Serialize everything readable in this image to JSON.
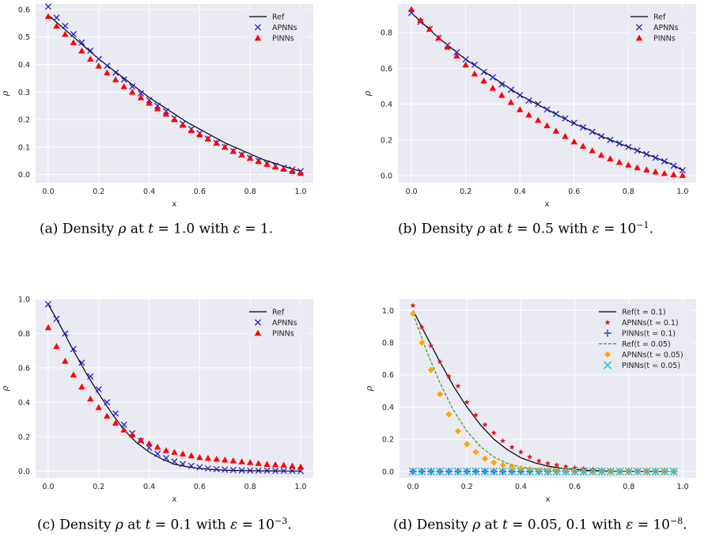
{
  "chart_data": [
    {
      "type": "scatter",
      "xlabel": "x",
      "ylabel": "ρ",
      "xlim": [
        -0.05,
        1.05
      ],
      "ylim": [
        -0.03,
        0.62
      ],
      "xticks": [
        "0.0",
        "0.2",
        "0.4",
        "0.6",
        "0.8",
        "1.0"
      ],
      "yticks": [
        "0.0",
        "0.1",
        "0.2",
        "0.3",
        "0.4",
        "0.5",
        "0.6"
      ],
      "legend_position": "top-right",
      "series": [
        {
          "name": "Ref",
          "style": "line",
          "color": "#000000",
          "x": [
            0,
            0.05,
            0.1,
            0.15,
            0.2,
            0.25,
            0.3,
            0.35,
            0.4,
            0.45,
            0.5,
            0.55,
            0.6,
            0.65,
            0.7,
            0.75,
            0.8,
            0.85,
            0.9,
            0.95,
            1.0
          ],
          "y": [
            0.58,
            0.54,
            0.5,
            0.46,
            0.42,
            0.385,
            0.35,
            0.315,
            0.28,
            0.25,
            0.22,
            0.19,
            0.165,
            0.14,
            0.115,
            0.095,
            0.075,
            0.055,
            0.04,
            0.025,
            0.012
          ]
        },
        {
          "name": "APNNs",
          "style": "x",
          "color": "#1f1fcc",
          "x": [
            0,
            0.033,
            0.067,
            0.1,
            0.133,
            0.167,
            0.2,
            0.233,
            0.267,
            0.3,
            0.333,
            0.367,
            0.4,
            0.433,
            0.467,
            0.5,
            0.533,
            0.567,
            0.6,
            0.633,
            0.667,
            0.7,
            0.733,
            0.767,
            0.8,
            0.833,
            0.867,
            0.9,
            0.933,
            0.967,
            1.0
          ],
          "y": [
            0.61,
            0.57,
            0.54,
            0.51,
            0.48,
            0.45,
            0.42,
            0.395,
            0.37,
            0.345,
            0.32,
            0.295,
            0.27,
            0.25,
            0.23,
            0.205,
            0.185,
            0.165,
            0.15,
            0.13,
            0.115,
            0.1,
            0.085,
            0.072,
            0.06,
            0.05,
            0.04,
            0.032,
            0.025,
            0.018,
            0.012
          ]
        },
        {
          "name": "PINNs",
          "style": "triangle",
          "color": "#ff0000",
          "x": [
            0,
            0.033,
            0.067,
            0.1,
            0.133,
            0.167,
            0.2,
            0.233,
            0.267,
            0.3,
            0.333,
            0.367,
            0.4,
            0.433,
            0.467,
            0.5,
            0.533,
            0.567,
            0.6,
            0.633,
            0.667,
            0.7,
            0.733,
            0.767,
            0.8,
            0.833,
            0.867,
            0.9,
            0.933,
            0.967,
            1.0
          ],
          "y": [
            0.575,
            0.54,
            0.51,
            0.48,
            0.45,
            0.42,
            0.395,
            0.37,
            0.345,
            0.32,
            0.3,
            0.28,
            0.26,
            0.24,
            0.22,
            0.2,
            0.18,
            0.16,
            0.145,
            0.13,
            0.115,
            0.1,
            0.085,
            0.072,
            0.06,
            0.048,
            0.038,
            0.028,
            0.02,
            0.012,
            0.005
          ]
        }
      ]
    },
    {
      "type": "scatter",
      "xlabel": "x",
      "ylabel": "ρ",
      "xlim": [
        -0.05,
        1.05
      ],
      "ylim": [
        -0.04,
        0.96
      ],
      "xticks": [
        "0.0",
        "0.2",
        "0.4",
        "0.6",
        "0.8",
        "1.0"
      ],
      "yticks": [
        "0.0",
        "0.2",
        "0.4",
        "0.6",
        "0.8"
      ],
      "legend_position": "top-right",
      "series": [
        {
          "name": "Ref",
          "style": "line",
          "color": "#000000",
          "x": [
            0,
            0.05,
            0.1,
            0.15,
            0.2,
            0.25,
            0.3,
            0.35,
            0.4,
            0.45,
            0.5,
            0.55,
            0.6,
            0.65,
            0.7,
            0.75,
            0.8,
            0.85,
            0.9,
            0.95,
            1.0
          ],
          "y": [
            0.91,
            0.84,
            0.77,
            0.71,
            0.65,
            0.6,
            0.55,
            0.5,
            0.45,
            0.41,
            0.37,
            0.33,
            0.29,
            0.26,
            0.22,
            0.19,
            0.16,
            0.13,
            0.1,
            0.07,
            0.03
          ]
        },
        {
          "name": "APNNs",
          "style": "x",
          "color": "#1f1fcc",
          "x": [
            0,
            0.033,
            0.067,
            0.1,
            0.133,
            0.167,
            0.2,
            0.233,
            0.267,
            0.3,
            0.333,
            0.367,
            0.4,
            0.433,
            0.467,
            0.5,
            0.533,
            0.567,
            0.6,
            0.633,
            0.667,
            0.7,
            0.733,
            0.767,
            0.8,
            0.833,
            0.867,
            0.9,
            0.933,
            0.967,
            1.0
          ],
          "y": [
            0.91,
            0.86,
            0.82,
            0.77,
            0.73,
            0.69,
            0.65,
            0.62,
            0.58,
            0.55,
            0.51,
            0.48,
            0.45,
            0.42,
            0.4,
            0.37,
            0.345,
            0.32,
            0.295,
            0.27,
            0.245,
            0.22,
            0.2,
            0.18,
            0.16,
            0.14,
            0.12,
            0.1,
            0.08,
            0.055,
            0.03
          ]
        },
        {
          "name": "PINNs",
          "style": "triangle",
          "color": "#ff0000",
          "x": [
            0,
            0.033,
            0.067,
            0.1,
            0.133,
            0.167,
            0.2,
            0.233,
            0.267,
            0.3,
            0.333,
            0.367,
            0.4,
            0.433,
            0.467,
            0.5,
            0.533,
            0.567,
            0.6,
            0.633,
            0.667,
            0.7,
            0.733,
            0.767,
            0.8,
            0.833,
            0.867,
            0.9,
            0.933,
            0.967,
            1.0
          ],
          "y": [
            0.93,
            0.87,
            0.82,
            0.77,
            0.72,
            0.67,
            0.62,
            0.57,
            0.53,
            0.49,
            0.45,
            0.41,
            0.37,
            0.34,
            0.31,
            0.28,
            0.25,
            0.22,
            0.19,
            0.165,
            0.14,
            0.115,
            0.095,
            0.075,
            0.06,
            0.045,
            0.033,
            0.022,
            0.013,
            0.006,
            0.002
          ]
        }
      ]
    },
    {
      "type": "scatter",
      "xlabel": "x",
      "ylabel": "ρ",
      "xlim": [
        -0.05,
        1.05
      ],
      "ylim": [
        -0.04,
        1.0
      ],
      "xticks": [
        "0.0",
        "0.2",
        "0.4",
        "0.6",
        "0.8",
        "1.0"
      ],
      "yticks": [
        "0.0",
        "0.2",
        "0.4",
        "0.6",
        "0.8",
        "1.0"
      ],
      "legend_position": "top-right",
      "series": [
        {
          "name": "Ref",
          "style": "line",
          "color": "#000000",
          "x": [
            0,
            0.05,
            0.1,
            0.15,
            0.2,
            0.25,
            0.3,
            0.35,
            0.4,
            0.45,
            0.5,
            0.55,
            0.6,
            0.65,
            0.7,
            0.75,
            0.8,
            0.85,
            0.9,
            0.95,
            1.0
          ],
          "y": [
            0.97,
            0.84,
            0.7,
            0.57,
            0.45,
            0.34,
            0.24,
            0.165,
            0.11,
            0.07,
            0.04,
            0.025,
            0.015,
            0.009,
            0.005,
            0.003,
            0.002,
            0.001,
            0.001,
            0.0,
            0.0
          ]
        },
        {
          "name": "APNNs",
          "style": "x",
          "color": "#1f1fcc",
          "x": [
            0,
            0.033,
            0.067,
            0.1,
            0.133,
            0.167,
            0.2,
            0.233,
            0.267,
            0.3,
            0.333,
            0.367,
            0.4,
            0.433,
            0.467,
            0.5,
            0.533,
            0.567,
            0.6,
            0.633,
            0.667,
            0.7,
            0.733,
            0.767,
            0.8,
            0.833,
            0.867,
            0.9,
            0.933,
            0.967,
            1.0
          ],
          "y": [
            0.97,
            0.885,
            0.8,
            0.71,
            0.63,
            0.55,
            0.475,
            0.4,
            0.335,
            0.27,
            0.22,
            0.175,
            0.135,
            0.1,
            0.075,
            0.055,
            0.04,
            0.03,
            0.022,
            0.015,
            0.011,
            0.008,
            0.006,
            0.004,
            0.003,
            0.002,
            0.002,
            0.001,
            0.001,
            0.001,
            0.0
          ]
        },
        {
          "name": "PINNs",
          "style": "triangle",
          "color": "#ff0000",
          "x": [
            0,
            0.033,
            0.067,
            0.1,
            0.133,
            0.167,
            0.2,
            0.233,
            0.267,
            0.3,
            0.333,
            0.367,
            0.4,
            0.433,
            0.467,
            0.5,
            0.533,
            0.567,
            0.6,
            0.633,
            0.667,
            0.7,
            0.733,
            0.767,
            0.8,
            0.833,
            0.867,
            0.9,
            0.933,
            0.967,
            1.0
          ],
          "y": [
            0.835,
            0.725,
            0.64,
            0.56,
            0.49,
            0.42,
            0.37,
            0.32,
            0.28,
            0.24,
            0.21,
            0.18,
            0.16,
            0.14,
            0.12,
            0.11,
            0.1,
            0.09,
            0.08,
            0.075,
            0.07,
            0.065,
            0.06,
            0.055,
            0.05,
            0.045,
            0.04,
            0.038,
            0.035,
            0.03,
            0.025
          ]
        }
      ]
    },
    {
      "type": "scatter",
      "xlabel": "x",
      "ylabel": "ρ",
      "xlim": [
        -0.05,
        1.05
      ],
      "ylim": [
        -0.04,
        1.07
      ],
      "xticks": [
        "0.0",
        "0.2",
        "0.4",
        "0.6",
        "0.8",
        "1.0"
      ],
      "yticks": [
        "0.0",
        "0.2",
        "0.4",
        "0.6",
        "0.8",
        "1.0"
      ],
      "legend_position": "top-right",
      "series": [
        {
          "name": "Ref(t = 0.1)",
          "style": "line",
          "color": "#000000",
          "x": [
            0,
            0.05,
            0.1,
            0.15,
            0.2,
            0.25,
            0.3,
            0.35,
            0.4,
            0.45,
            0.5,
            0.55,
            0.6,
            0.65,
            0.7,
            0.75,
            0.8,
            0.85,
            0.9,
            0.95
          ],
          "y": [
            1.0,
            0.84,
            0.68,
            0.53,
            0.4,
            0.29,
            0.2,
            0.135,
            0.085,
            0.055,
            0.033,
            0.02,
            0.012,
            0.007,
            0.004,
            0.002,
            0.001,
            0.0,
            0.0,
            0.0
          ]
        },
        {
          "name": "APNNs(t = 0.1)",
          "style": "star",
          "color": "#e0141e",
          "x": [
            0,
            0.033,
            0.067,
            0.1,
            0.133,
            0.167,
            0.2,
            0.233,
            0.267,
            0.3,
            0.333,
            0.367,
            0.4,
            0.433,
            0.467,
            0.5,
            0.533,
            0.567,
            0.6,
            0.633,
            0.667,
            0.7,
            0.733,
            0.767,
            0.8,
            0.833,
            0.867,
            0.9,
            0.933,
            0.967
          ],
          "y": [
            1.03,
            0.895,
            0.78,
            0.68,
            0.59,
            0.53,
            0.43,
            0.35,
            0.29,
            0.24,
            0.19,
            0.15,
            0.12,
            0.09,
            0.065,
            0.05,
            0.04,
            0.03,
            0.022,
            0.016,
            0.012,
            0.008,
            0.006,
            0.004,
            0.003,
            0.002,
            0.001,
            0.001,
            0.0,
            0.0
          ]
        },
        {
          "name": "PINNs(t = 0.1)",
          "style": "plus",
          "color": "#1f3fd0",
          "x": [
            0,
            0.033,
            0.067,
            0.1,
            0.133,
            0.167,
            0.2,
            0.233,
            0.267,
            0.3,
            0.333,
            0.367,
            0.4,
            0.433,
            0.467,
            0.5,
            0.533,
            0.567,
            0.6,
            0.633,
            0.667,
            0.7,
            0.733,
            0.767,
            0.8,
            0.833,
            0.867,
            0.9,
            0.933,
            0.967
          ],
          "y": [
            0,
            0,
            0,
            0,
            0,
            0,
            0,
            0,
            0,
            0,
            0,
            0,
            0,
            0,
            0,
            0,
            0,
            0,
            0,
            0,
            0,
            0,
            0,
            0,
            0,
            0,
            0,
            0,
            0,
            0
          ]
        },
        {
          "name": "Ref(t = 0.05)",
          "style": "dashed",
          "color": "#2ca02c",
          "x": [
            0,
            0.05,
            0.1,
            0.15,
            0.2,
            0.25,
            0.3,
            0.35,
            0.4,
            0.45,
            0.5,
            0.55,
            0.6,
            0.65,
            0.7,
            0.75,
            0.8,
            0.85,
            0.9,
            0.95
          ],
          "y": [
            0.98,
            0.75,
            0.55,
            0.38,
            0.25,
            0.155,
            0.09,
            0.05,
            0.028,
            0.015,
            0.008,
            0.004,
            0.002,
            0.001,
            0.0,
            0.0,
            0.0,
            0.0,
            0.0,
            0.0
          ]
        },
        {
          "name": "APNNs(t = 0.05)",
          "style": "diamond",
          "color": "#ffa500",
          "x": [
            0,
            0.033,
            0.067,
            0.1,
            0.133,
            0.167,
            0.2,
            0.233,
            0.267,
            0.3,
            0.333,
            0.367,
            0.4,
            0.433,
            0.467,
            0.5,
            0.533,
            0.567,
            0.6,
            0.633,
            0.667,
            0.7,
            0.733,
            0.767,
            0.8,
            0.833,
            0.867,
            0.9,
            0.933,
            0.967
          ],
          "y": [
            0.98,
            0.8,
            0.63,
            0.48,
            0.355,
            0.25,
            0.17,
            0.12,
            0.08,
            0.055,
            0.04,
            0.03,
            0.02,
            0.015,
            0.01,
            0.007,
            0.005,
            0.003,
            0.002,
            0.001,
            0.0,
            0.0,
            0.0,
            0.0,
            0.0,
            0.0,
            0.0,
            0.0,
            0.0,
            0.0
          ]
        },
        {
          "name": "PINNs(t = 0.05)",
          "style": "bigx",
          "color": "#17becf",
          "x": [
            0,
            0.033,
            0.067,
            0.1,
            0.133,
            0.167,
            0.2,
            0.233,
            0.267,
            0.3,
            0.333,
            0.367,
            0.4,
            0.433,
            0.467,
            0.5,
            0.533,
            0.567,
            0.6,
            0.633,
            0.667,
            0.7,
            0.733,
            0.767,
            0.8,
            0.833,
            0.867,
            0.9,
            0.933,
            0.967
          ],
          "y": [
            0,
            0,
            0,
            0,
            0,
            0,
            0,
            0,
            0,
            0,
            0,
            0,
            0,
            0,
            0,
            0,
            0,
            0,
            0,
            0,
            0,
            0,
            0,
            0,
            0,
            0,
            0,
            0,
            0,
            0
          ]
        }
      ]
    }
  ],
  "captions": [
    {
      "label": "(a)",
      "pre": "Density",
      "sym": "ρ",
      "mid": "at",
      "t": "t",
      "tval": "= 1.0",
      "with": "with",
      "eps": "ε",
      "epsval": "= 1.",
      "sup": ""
    },
    {
      "label": "(b)",
      "pre": "Density",
      "sym": "ρ",
      "mid": "at",
      "t": "t",
      "tval": "= 0.5",
      "with": "with",
      "eps": "ε",
      "epsval": "= 10",
      "sup": "−1"
    },
    {
      "label": "(c)",
      "pre": "Density",
      "sym": "ρ",
      "mid": "at",
      "t": "t",
      "tval": "= 0.1",
      "with": "with",
      "eps": "ε",
      "epsval": "= 10",
      "sup": "−3"
    },
    {
      "label": "(d)",
      "pre": "Density",
      "sym": "ρ",
      "mid": "at",
      "t": "t",
      "tval": "= 0.05, 0.1",
      "with": "with",
      "eps": "ε",
      "epsval": "= 10",
      "sup": "−8"
    }
  ]
}
